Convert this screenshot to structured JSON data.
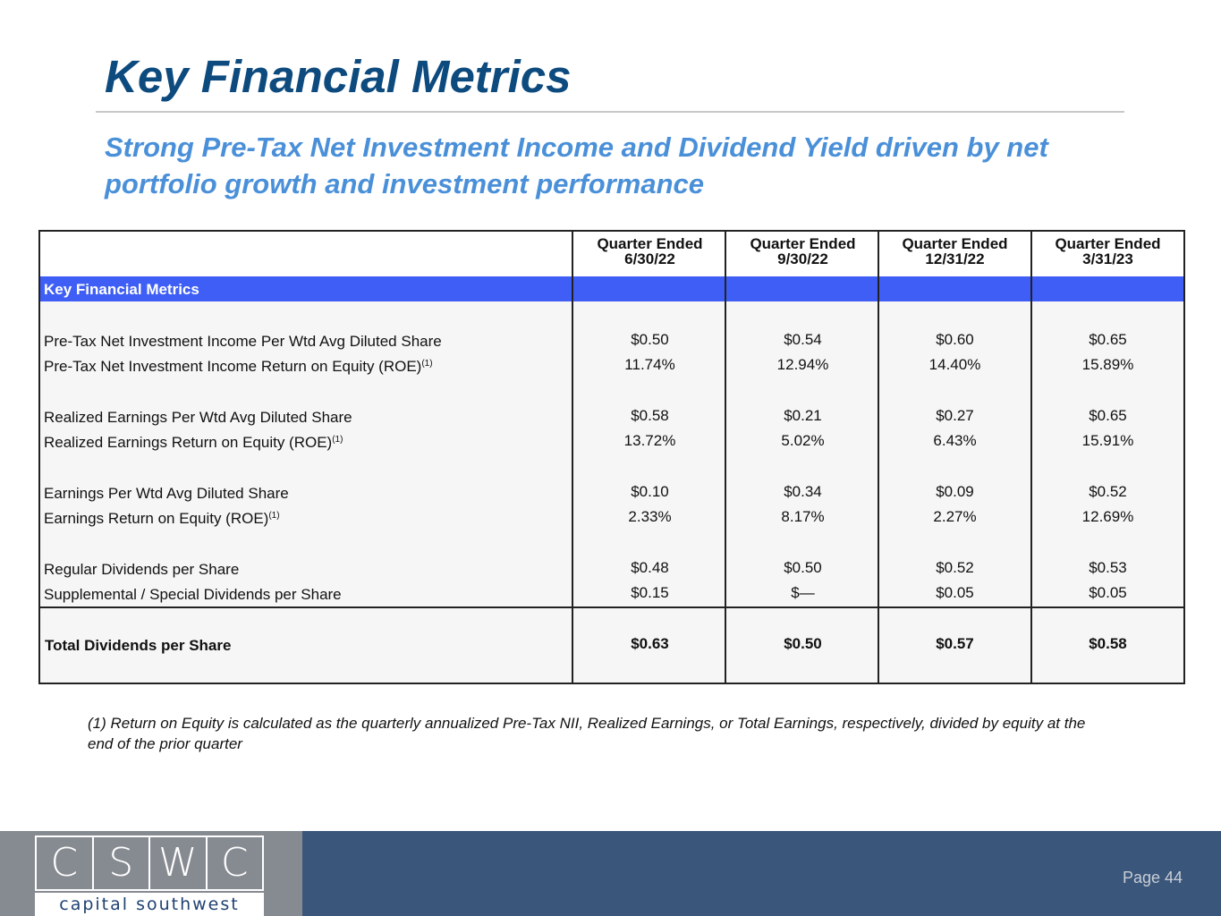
{
  "slide": {
    "title": "Key Financial Metrics",
    "subtitle": "Strong Pre-Tax Net Investment Income and Dividend Yield driven by net portfolio growth and investment performance",
    "page_label": "Page 44"
  },
  "table": {
    "columns": [
      {
        "line1": "Quarter Ended",
        "line2": "6/30/22"
      },
      {
        "line1": "Quarter Ended",
        "line2": "9/30/22"
      },
      {
        "line1": "Quarter Ended",
        "line2": "12/31/22"
      },
      {
        "line1": "Quarter Ended",
        "line2": "3/31/23"
      }
    ],
    "section_label": "Key Financial Metrics",
    "rows": [
      {
        "label": "Pre-Tax Net Investment Income Per Wtd Avg Diluted Share",
        "sup": "",
        "values": [
          "$0.50",
          "$0.54",
          "$0.60",
          "$0.65"
        ]
      },
      {
        "label": "Pre-Tax Net Investment Income Return on Equity (ROE)",
        "sup": "(1)",
        "values": [
          "11.74%",
          "12.94%",
          "14.40%",
          "15.89%"
        ]
      },
      {
        "label": "Realized Earnings Per Wtd Avg Diluted Share",
        "sup": "",
        "values": [
          "$0.58",
          "$0.21",
          "$0.27",
          "$0.65"
        ]
      },
      {
        "label": "Realized Earnings Return on Equity (ROE)",
        "sup": "(1)",
        "values": [
          "13.72%",
          "5.02%",
          "6.43%",
          "15.91%"
        ]
      },
      {
        "label": "Earnings Per Wtd Avg Diluted Share",
        "sup": "",
        "values": [
          "$0.10",
          "$0.34",
          "$0.09",
          "$0.52"
        ]
      },
      {
        "label": "Earnings Return on Equity (ROE)",
        "sup": "(1)",
        "values": [
          "2.33%",
          "8.17%",
          "2.27%",
          "12.69%"
        ]
      },
      {
        "label": "Regular Dividends per Share",
        "sup": "",
        "values": [
          "$0.48",
          "$0.50",
          "$0.52",
          "$0.53"
        ]
      },
      {
        "label": "Supplemental / Special Dividends per Share",
        "sup": "",
        "values": [
          "$0.15",
          "$—",
          "$0.05",
          "$0.05"
        ]
      }
    ],
    "total": {
      "label": "Total Dividends per Share",
      "values": [
        "$0.63",
        "$0.50",
        "$0.57",
        "$0.58"
      ]
    }
  },
  "footnote": "(1)  Return on Equity is calculated as the quarterly annualized Pre-Tax NII, Realized Earnings, or Total Earnings, respectively, divided by equity at the end of the prior quarter",
  "logo": {
    "letters": [
      "C",
      "S",
      "W",
      "C"
    ],
    "tagline": "capital southwest"
  },
  "colors": {
    "title": "#0d4a7e",
    "subtitle": "#4a90d9",
    "section_bar": "#3e5ef5",
    "footer": "#3a567b",
    "logo_panel": "#868a91"
  }
}
